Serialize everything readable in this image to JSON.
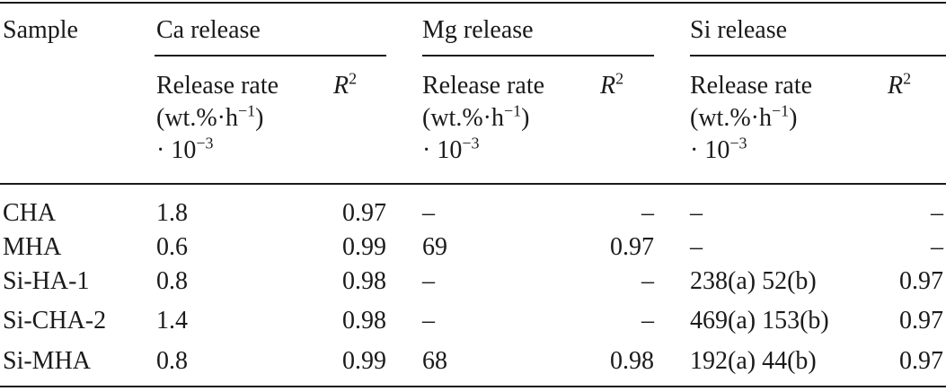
{
  "header": {
    "sample": "Sample",
    "groups": [
      "Ca release",
      "Mg release",
      "Si release"
    ],
    "rate_line1": "Release rate",
    "rate_line2_a": "(wt.%·h",
    "rate_line2_exp": "−1",
    "rate_line2_b": ")",
    "rate_line3_a": "· 10",
    "rate_line3_exp": "−3",
    "r2_base": "R",
    "r2_exp": "2"
  },
  "rows": [
    {
      "sample": "CHA",
      "ca_rate": "1.8",
      "ca_r2": "0.97",
      "mg_rate": "–",
      "mg_r2": "–",
      "si_rate": "–",
      "si_r2": "–"
    },
    {
      "sample": "MHA",
      "ca_rate": "0.6",
      "ca_r2": "0.99",
      "mg_rate": "69",
      "mg_r2": "0.97",
      "si_rate": "–",
      "si_r2": "–"
    },
    {
      "sample": "Si-HA-1",
      "ca_rate": "0.8",
      "ca_r2": "0.98",
      "mg_rate": "–",
      "mg_r2": "–",
      "si_rate": "238(a) 52(b)",
      "si_r2": "0.97"
    },
    {
      "sample": "Si-CHA-2",
      "ca_rate": "1.4",
      "ca_r2": "0.98",
      "mg_rate": "–",
      "mg_r2": "–",
      "si_rate": "469(a) 153(b)",
      "si_r2": "0.97"
    },
    {
      "sample": "Si-MHA",
      "ca_rate": "0.8",
      "ca_r2": "0.99",
      "mg_rate": "68",
      "mg_r2": "0.98",
      "si_rate": "192(a) 44(b)",
      "si_r2": "0.97"
    }
  ]
}
